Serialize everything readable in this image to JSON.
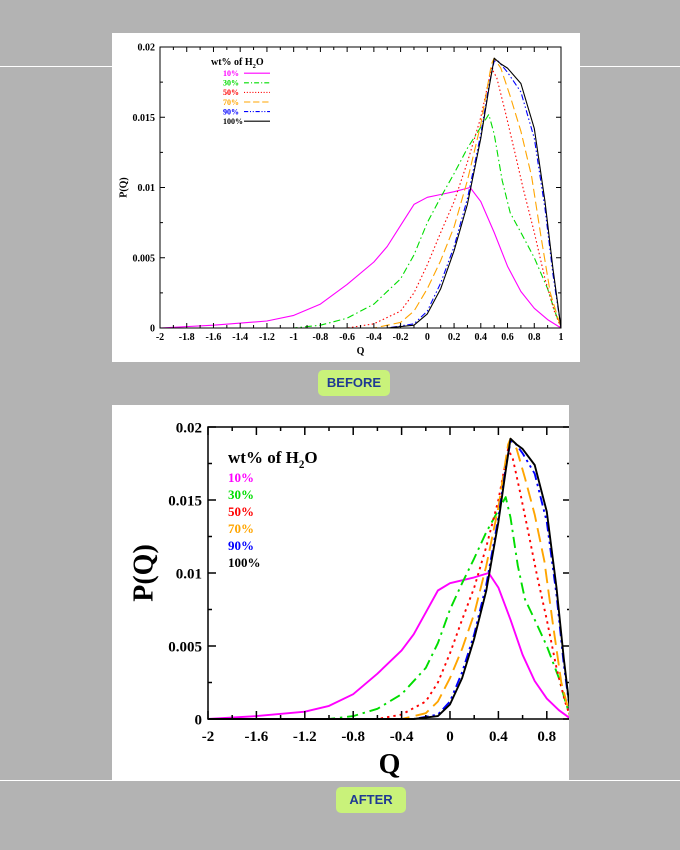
{
  "badges": {
    "before": "BEFORE",
    "after": "AFTER"
  },
  "chart_data": [
    {
      "panel": "before",
      "type": "line",
      "xlabel": "Q",
      "ylabel": "P(Q)",
      "xlim": [
        -2,
        1
      ],
      "ylim": [
        0,
        0.02
      ],
      "x_ticks": [
        "-2",
        "-1.8",
        "-1.6",
        "-1.4",
        "-1.2",
        "-1",
        "-0.8",
        "-0.6",
        "-0.4",
        "-0.2",
        "0",
        "0.2",
        "0.4",
        "0.6",
        "0.8",
        "1"
      ],
      "y_ticks": [
        "0",
        "0.005",
        "0.01",
        "0.015",
        "0.02"
      ],
      "legend_title": "wt% of H2O",
      "legend_position": "top-left",
      "series": [
        {
          "name": "10%",
          "color": "#ff00ff",
          "dash": "solid",
          "points": [
            [
              -2,
              0
            ],
            [
              -1.6,
              0.0002
            ],
            [
              -1.2,
              0.0005
            ],
            [
              -1,
              0.0009
            ],
            [
              -0.8,
              0.0017
            ],
            [
              -0.6,
              0.0031
            ],
            [
              -0.4,
              0.0047
            ],
            [
              -0.3,
              0.0058
            ],
            [
              -0.2,
              0.0073
            ],
            [
              -0.1,
              0.0088
            ],
            [
              0,
              0.0093
            ],
            [
              0.1,
              0.0095
            ],
            [
              0.2,
              0.0097
            ],
            [
              0.32,
              0.01
            ],
            [
              0.4,
              0.009
            ],
            [
              0.5,
              0.0068
            ],
            [
              0.6,
              0.0044
            ],
            [
              0.7,
              0.0026
            ],
            [
              0.8,
              0.0014
            ],
            [
              0.9,
              0.0006
            ],
            [
              1,
              0
            ]
          ]
        },
        {
          "name": "30%",
          "color": "#00dd00",
          "dash": "dashdot",
          "points": [
            [
              -2,
              0
            ],
            [
              -1,
              0
            ],
            [
              -0.8,
              0.0002
            ],
            [
              -0.6,
              0.0007
            ],
            [
              -0.4,
              0.0017
            ],
            [
              -0.2,
              0.0035
            ],
            [
              -0.1,
              0.0052
            ],
            [
              0,
              0.0075
            ],
            [
              0.1,
              0.0093
            ],
            [
              0.2,
              0.011
            ],
            [
              0.3,
              0.0128
            ],
            [
              0.4,
              0.0143
            ],
            [
              0.46,
              0.0152
            ],
            [
              0.5,
              0.0138
            ],
            [
              0.56,
              0.0105
            ],
            [
              0.62,
              0.0082
            ],
            [
              0.7,
              0.0068
            ],
            [
              0.8,
              0.005
            ],
            [
              0.9,
              0.0028
            ],
            [
              0.95,
              0.0013
            ],
            [
              1,
              0
            ]
          ]
        },
        {
          "name": "50%",
          "color": "#ff0000",
          "dash": "dotted",
          "points": [
            [
              -2,
              0
            ],
            [
              -0.6,
              0
            ],
            [
              -0.4,
              0.0003
            ],
            [
              -0.2,
              0.0012
            ],
            [
              -0.1,
              0.0025
            ],
            [
              0,
              0.0045
            ],
            [
              0.1,
              0.0068
            ],
            [
              0.2,
              0.009
            ],
            [
              0.3,
              0.0118
            ],
            [
              0.4,
              0.015
            ],
            [
              0.45,
              0.0172
            ],
            [
              0.48,
              0.0185
            ],
            [
              0.52,
              0.0178
            ],
            [
              0.58,
              0.0155
            ],
            [
              0.65,
              0.0127
            ],
            [
              0.72,
              0.0098
            ],
            [
              0.8,
              0.0068
            ],
            [
              0.88,
              0.0035
            ],
            [
              0.95,
              0.0012
            ],
            [
              1,
              0
            ]
          ]
        },
        {
          "name": "70%",
          "color": "#ffa500",
          "dash": "longdash",
          "points": [
            [
              -2,
              0
            ],
            [
              -0.4,
              0
            ],
            [
              -0.2,
              0.0004
            ],
            [
              -0.1,
              0.0012
            ],
            [
              0,
              0.0028
            ],
            [
              0.1,
              0.0048
            ],
            [
              0.2,
              0.0072
            ],
            [
              0.3,
              0.0105
            ],
            [
              0.4,
              0.0145
            ],
            [
              0.45,
              0.0172
            ],
            [
              0.48,
              0.0188
            ],
            [
              0.5,
              0.0192
            ],
            [
              0.55,
              0.0185
            ],
            [
              0.62,
              0.0165
            ],
            [
              0.7,
              0.014
            ],
            [
              0.78,
              0.0108
            ],
            [
              0.85,
              0.0065
            ],
            [
              0.92,
              0.0025
            ],
            [
              1,
              0
            ]
          ]
        },
        {
          "name": "90%",
          "color": "#0000ff",
          "dash": "dashdotdot",
          "points": [
            [
              -2,
              0
            ],
            [
              -0.3,
              0
            ],
            [
              -0.1,
              0.0003
            ],
            [
              0,
              0.0012
            ],
            [
              0.1,
              0.0032
            ],
            [
              0.2,
              0.0058
            ],
            [
              0.3,
              0.0092
            ],
            [
              0.4,
              0.0138
            ],
            [
              0.46,
              0.0172
            ],
            [
              0.5,
              0.019
            ],
            [
              0.53,
              0.019
            ],
            [
              0.6,
              0.0182
            ],
            [
              0.7,
              0.0168
            ],
            [
              0.8,
              0.0135
            ],
            [
              0.88,
              0.0085
            ],
            [
              0.94,
              0.0038
            ],
            [
              1,
              0
            ]
          ]
        },
        {
          "name": "100%",
          "color": "#000000",
          "dash": "solid",
          "points": [
            [
              -2,
              0
            ],
            [
              -0.3,
              0
            ],
            [
              -0.1,
              0.0002
            ],
            [
              0,
              0.001
            ],
            [
              0.1,
              0.0028
            ],
            [
              0.2,
              0.0055
            ],
            [
              0.3,
              0.0088
            ],
            [
              0.4,
              0.0135
            ],
            [
              0.46,
              0.017
            ],
            [
              0.5,
              0.0192
            ],
            [
              0.55,
              0.0188
            ],
            [
              0.6,
              0.0185
            ],
            [
              0.7,
              0.0174
            ],
            [
              0.8,
              0.0142
            ],
            [
              0.88,
              0.009
            ],
            [
              0.94,
              0.0042
            ],
            [
              1,
              0
            ]
          ]
        }
      ]
    },
    {
      "panel": "after",
      "type": "line",
      "xlabel": "Q",
      "ylabel": "P(Q)",
      "xlim": [
        -2,
        1
      ],
      "ylim": [
        0,
        0.02
      ],
      "x_ticks": [
        "-2",
        "-1.6",
        "-1.2",
        "-0.8",
        "-0.4",
        "0",
        "0.4",
        "0.8"
      ],
      "y_ticks": [
        "0",
        "0.005",
        "0.01",
        "0.015",
        "0.02"
      ],
      "legend_title": "wt% of H2O",
      "legend_position": "top-left",
      "series": [
        {
          "name": "10%",
          "color": "#ff00ff",
          "dash": "solid",
          "points": [
            [
              -2,
              0
            ],
            [
              -1.6,
              0.0002
            ],
            [
              -1.2,
              0.0005
            ],
            [
              -1,
              0.0009
            ],
            [
              -0.8,
              0.0017
            ],
            [
              -0.6,
              0.0031
            ],
            [
              -0.4,
              0.0047
            ],
            [
              -0.3,
              0.0058
            ],
            [
              -0.2,
              0.0073
            ],
            [
              -0.1,
              0.0088
            ],
            [
              0,
              0.0093
            ],
            [
              0.1,
              0.0095
            ],
            [
              0.2,
              0.0097
            ],
            [
              0.32,
              0.01
            ],
            [
              0.4,
              0.009
            ],
            [
              0.5,
              0.0068
            ],
            [
              0.6,
              0.0044
            ],
            [
              0.7,
              0.0026
            ],
            [
              0.8,
              0.0014
            ],
            [
              0.9,
              0.0006
            ],
            [
              1,
              0
            ]
          ]
        },
        {
          "name": "30%",
          "color": "#00dd00",
          "dash": "dashdot",
          "points": [
            [
              -2,
              0
            ],
            [
              -1,
              0
            ],
            [
              -0.8,
              0.0002
            ],
            [
              -0.6,
              0.0007
            ],
            [
              -0.4,
              0.0017
            ],
            [
              -0.2,
              0.0035
            ],
            [
              -0.1,
              0.0052
            ],
            [
              0,
              0.0075
            ],
            [
              0.1,
              0.0093
            ],
            [
              0.2,
              0.011
            ],
            [
              0.3,
              0.0128
            ],
            [
              0.4,
              0.0143
            ],
            [
              0.46,
              0.0152
            ],
            [
              0.5,
              0.0138
            ],
            [
              0.56,
              0.0105
            ],
            [
              0.62,
              0.0082
            ],
            [
              0.7,
              0.0068
            ],
            [
              0.8,
              0.005
            ],
            [
              0.9,
              0.0028
            ],
            [
              0.95,
              0.0013
            ],
            [
              1,
              0
            ]
          ]
        },
        {
          "name": "50%",
          "color": "#ff0000",
          "dash": "dotted",
          "points": [
            [
              -2,
              0
            ],
            [
              -0.6,
              0
            ],
            [
              -0.4,
              0.0003
            ],
            [
              -0.2,
              0.0012
            ],
            [
              -0.1,
              0.0025
            ],
            [
              0,
              0.0045
            ],
            [
              0.1,
              0.0068
            ],
            [
              0.2,
              0.009
            ],
            [
              0.3,
              0.0118
            ],
            [
              0.4,
              0.015
            ],
            [
              0.45,
              0.0172
            ],
            [
              0.48,
              0.0185
            ],
            [
              0.52,
              0.0178
            ],
            [
              0.58,
              0.0155
            ],
            [
              0.65,
              0.0127
            ],
            [
              0.72,
              0.0098
            ],
            [
              0.8,
              0.0068
            ],
            [
              0.88,
              0.0035
            ],
            [
              0.95,
              0.0012
            ],
            [
              1,
              0
            ]
          ]
        },
        {
          "name": "70%",
          "color": "#ffa500",
          "dash": "longdash",
          "points": [
            [
              -2,
              0
            ],
            [
              -0.4,
              0
            ],
            [
              -0.2,
              0.0004
            ],
            [
              -0.1,
              0.0012
            ],
            [
              0,
              0.0028
            ],
            [
              0.1,
              0.0048
            ],
            [
              0.2,
              0.0072
            ],
            [
              0.3,
              0.0105
            ],
            [
              0.4,
              0.0145
            ],
            [
              0.45,
              0.0172
            ],
            [
              0.48,
              0.0188
            ],
            [
              0.5,
              0.0192
            ],
            [
              0.55,
              0.0185
            ],
            [
              0.62,
              0.0165
            ],
            [
              0.7,
              0.014
            ],
            [
              0.78,
              0.0108
            ],
            [
              0.85,
              0.0065
            ],
            [
              0.92,
              0.0025
            ],
            [
              1,
              0
            ]
          ]
        },
        {
          "name": "90%",
          "color": "#0000ff",
          "dash": "dashdotdot",
          "points": [
            [
              -2,
              0
            ],
            [
              -0.3,
              0
            ],
            [
              -0.1,
              0.0003
            ],
            [
              0,
              0.0012
            ],
            [
              0.1,
              0.0032
            ],
            [
              0.2,
              0.0058
            ],
            [
              0.3,
              0.0092
            ],
            [
              0.4,
              0.0138
            ],
            [
              0.46,
              0.0172
            ],
            [
              0.5,
              0.019
            ],
            [
              0.53,
              0.019
            ],
            [
              0.6,
              0.0182
            ],
            [
              0.7,
              0.0168
            ],
            [
              0.8,
              0.0135
            ],
            [
              0.88,
              0.0085
            ],
            [
              0.94,
              0.0038
            ],
            [
              1,
              0
            ]
          ]
        },
        {
          "name": "100%",
          "color": "#000000",
          "dash": "solid",
          "points": [
            [
              -2,
              0
            ],
            [
              -0.3,
              0
            ],
            [
              -0.1,
              0.0002
            ],
            [
              0,
              0.001
            ],
            [
              0.1,
              0.0028
            ],
            [
              0.2,
              0.0055
            ],
            [
              0.3,
              0.0088
            ],
            [
              0.4,
              0.0135
            ],
            [
              0.46,
              0.017
            ],
            [
              0.5,
              0.0192
            ],
            [
              0.55,
              0.0188
            ],
            [
              0.6,
              0.0185
            ],
            [
              0.7,
              0.0174
            ],
            [
              0.8,
              0.0142
            ],
            [
              0.88,
              0.009
            ],
            [
              0.94,
              0.0042
            ],
            [
              1,
              0
            ]
          ]
        }
      ]
    }
  ]
}
